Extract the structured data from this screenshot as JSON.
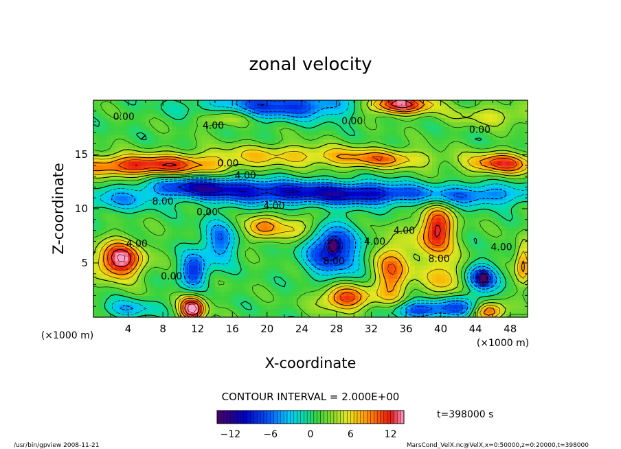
{
  "chart_data": {
    "type": "heatmap",
    "title": "zonal velocity",
    "xlabel": "X-coordinate",
    "ylabel": "Z-coordinate",
    "x_unit": "(×1000 m)",
    "y_unit": "(×1000 m)",
    "xlim": [
      0,
      50
    ],
    "ylim": [
      0,
      20
    ],
    "x_ticks": [
      "4",
      "8",
      "12",
      "16",
      "20",
      "24",
      "28",
      "32",
      "36",
      "40",
      "44",
      "48"
    ],
    "y_ticks": [
      "5",
      "10",
      "15"
    ],
    "contour_interval": "CONTOUR INTERVAL = 2.000E+00",
    "colorbar": {
      "range": [
        -14,
        14
      ],
      "ticks": [
        "−12",
        "−6",
        "0",
        "6",
        "12"
      ]
    },
    "contour_labels": [
      {
        "text": "0.00",
        "x": 3.5,
        "y": 18.5
      },
      {
        "text": "4.00",
        "x": 13.8,
        "y": 17.7
      },
      {
        "text": "0.00",
        "x": 29.8,
        "y": 18.1
      },
      {
        "text": "0.00",
        "x": 44.5,
        "y": 17.3
      },
      {
        "text": "0.00",
        "x": 15.5,
        "y": 14.2
      },
      {
        "text": "4.00",
        "x": 17.5,
        "y": 13.1
      },
      {
        "text": "8.00",
        "x": 8.0,
        "y": 10.7
      },
      {
        "text": "0.00",
        "x": 13.1,
        "y": 9.7
      },
      {
        "text": "4.00",
        "x": 20.8,
        "y": 10.3
      },
      {
        "text": "4.00",
        "x": 5.0,
        "y": 6.8
      },
      {
        "text": "0.00",
        "x": 9.0,
        "y": 3.8
      },
      {
        "text": "8.00",
        "x": 27.7,
        "y": 5.2
      },
      {
        "text": "4.00",
        "x": 32.4,
        "y": 7.0
      },
      {
        "text": "4.00",
        "x": 35.8,
        "y": 8.0
      },
      {
        "text": "8.00",
        "x": 39.8,
        "y": 5.4
      },
      {
        "text": "4.00",
        "x": 47.0,
        "y": 6.5
      }
    ],
    "features": [
      {
        "x": 22,
        "y": 19.5,
        "v": -9,
        "sx": 9,
        "sy": 1.2
      },
      {
        "x": 35,
        "y": 19.6,
        "v": 13,
        "sx": 4,
        "sy": 0.9
      },
      {
        "x": 46,
        "y": 18.6,
        "v": 4,
        "sx": 5,
        "sy": 1.0
      },
      {
        "x": 15,
        "y": 18.4,
        "v": 5,
        "sx": 3,
        "sy": 0.8
      },
      {
        "x": 6,
        "y": 14.0,
        "v": 11,
        "sx": 9,
        "sy": 1.0
      },
      {
        "x": 22,
        "y": 15.0,
        "v": 5,
        "sx": 9,
        "sy": 1.0
      },
      {
        "x": 33,
        "y": 14.6,
        "v": 7,
        "sx": 6,
        "sy": 0.9
      },
      {
        "x": 47,
        "y": 14.2,
        "v": 10,
        "sx": 4,
        "sy": 1.0
      },
      {
        "x": 3,
        "y": 10.8,
        "v": -5,
        "sx": 4,
        "sy": 1.0
      },
      {
        "x": 12,
        "y": 12.0,
        "v": -10,
        "sx": 6,
        "sy": 1.0
      },
      {
        "x": 22,
        "y": 11.5,
        "v": -10,
        "sx": 8,
        "sy": 1.1
      },
      {
        "x": 32,
        "y": 11.4,
        "v": -9,
        "sx": 6,
        "sy": 1.0
      },
      {
        "x": 44,
        "y": 11.3,
        "v": -7,
        "sx": 7,
        "sy": 1.0
      },
      {
        "x": 3,
        "y": 5.3,
        "v": 13,
        "sx": 2.7,
        "sy": 1.7
      },
      {
        "x": 11.5,
        "y": 4.3,
        "v": -9,
        "sx": 1.6,
        "sy": 1.6
      },
      {
        "x": 11.4,
        "y": 0.8,
        "v": 14,
        "sx": 1.5,
        "sy": 1.2
      },
      {
        "x": 14.5,
        "y": 7.0,
        "v": -7,
        "sx": 2,
        "sy": 2
      },
      {
        "x": 19.5,
        "y": 8.3,
        "v": 8,
        "sx": 2.0,
        "sy": 1.2
      },
      {
        "x": 23.8,
        "y": 8.3,
        "v": 6,
        "sx": 2.0,
        "sy": 1.2
      },
      {
        "x": 27.5,
        "y": 6.2,
        "v": -11,
        "sx": 3.0,
        "sy": 2.3
      },
      {
        "x": 27.6,
        "y": 6.6,
        "v": -15,
        "sx": 0.5,
        "sy": 0.5
      },
      {
        "x": 29.0,
        "y": 1.8,
        "v": 10,
        "sx": 3,
        "sy": 1.2
      },
      {
        "x": 34.5,
        "y": 4.3,
        "v": 9,
        "sx": 2.0,
        "sy": 3.0
      },
      {
        "x": 39.5,
        "y": 8.0,
        "v": 12,
        "sx": 2.0,
        "sy": 2.3
      },
      {
        "x": 40.5,
        "y": 3.6,
        "v": 6,
        "sx": 2.5,
        "sy": 2.0
      },
      {
        "x": 44.6,
        "y": 3.6,
        "v": -10,
        "sx": 2.0,
        "sy": 1.3
      },
      {
        "x": 44.9,
        "y": 3.6,
        "v": -15,
        "sx": 0.4,
        "sy": 0.4
      },
      {
        "x": 42,
        "y": 0.9,
        "v": -8,
        "sx": 4,
        "sy": 1.0
      },
      {
        "x": 45.5,
        "y": 0.6,
        "v": 12,
        "sx": 2,
        "sy": 0.9
      },
      {
        "x": 37,
        "y": 0.7,
        "v": -7,
        "sx": 3,
        "sy": 0.8
      },
      {
        "x": 4,
        "y": 0.8,
        "v": -5,
        "sx": 3,
        "sy": 0.8
      },
      {
        "x": 49.5,
        "y": 5.0,
        "v": 8,
        "sx": 0.9,
        "sy": 2
      }
    ]
  },
  "info": {
    "time_label": "t=398000 s",
    "footer_left": "/usr/bin/gpview  2008-11-21",
    "footer_right": "MarsCond_VelX.nc@VelX,x=0:50000,z=0:20000,t=398000"
  }
}
